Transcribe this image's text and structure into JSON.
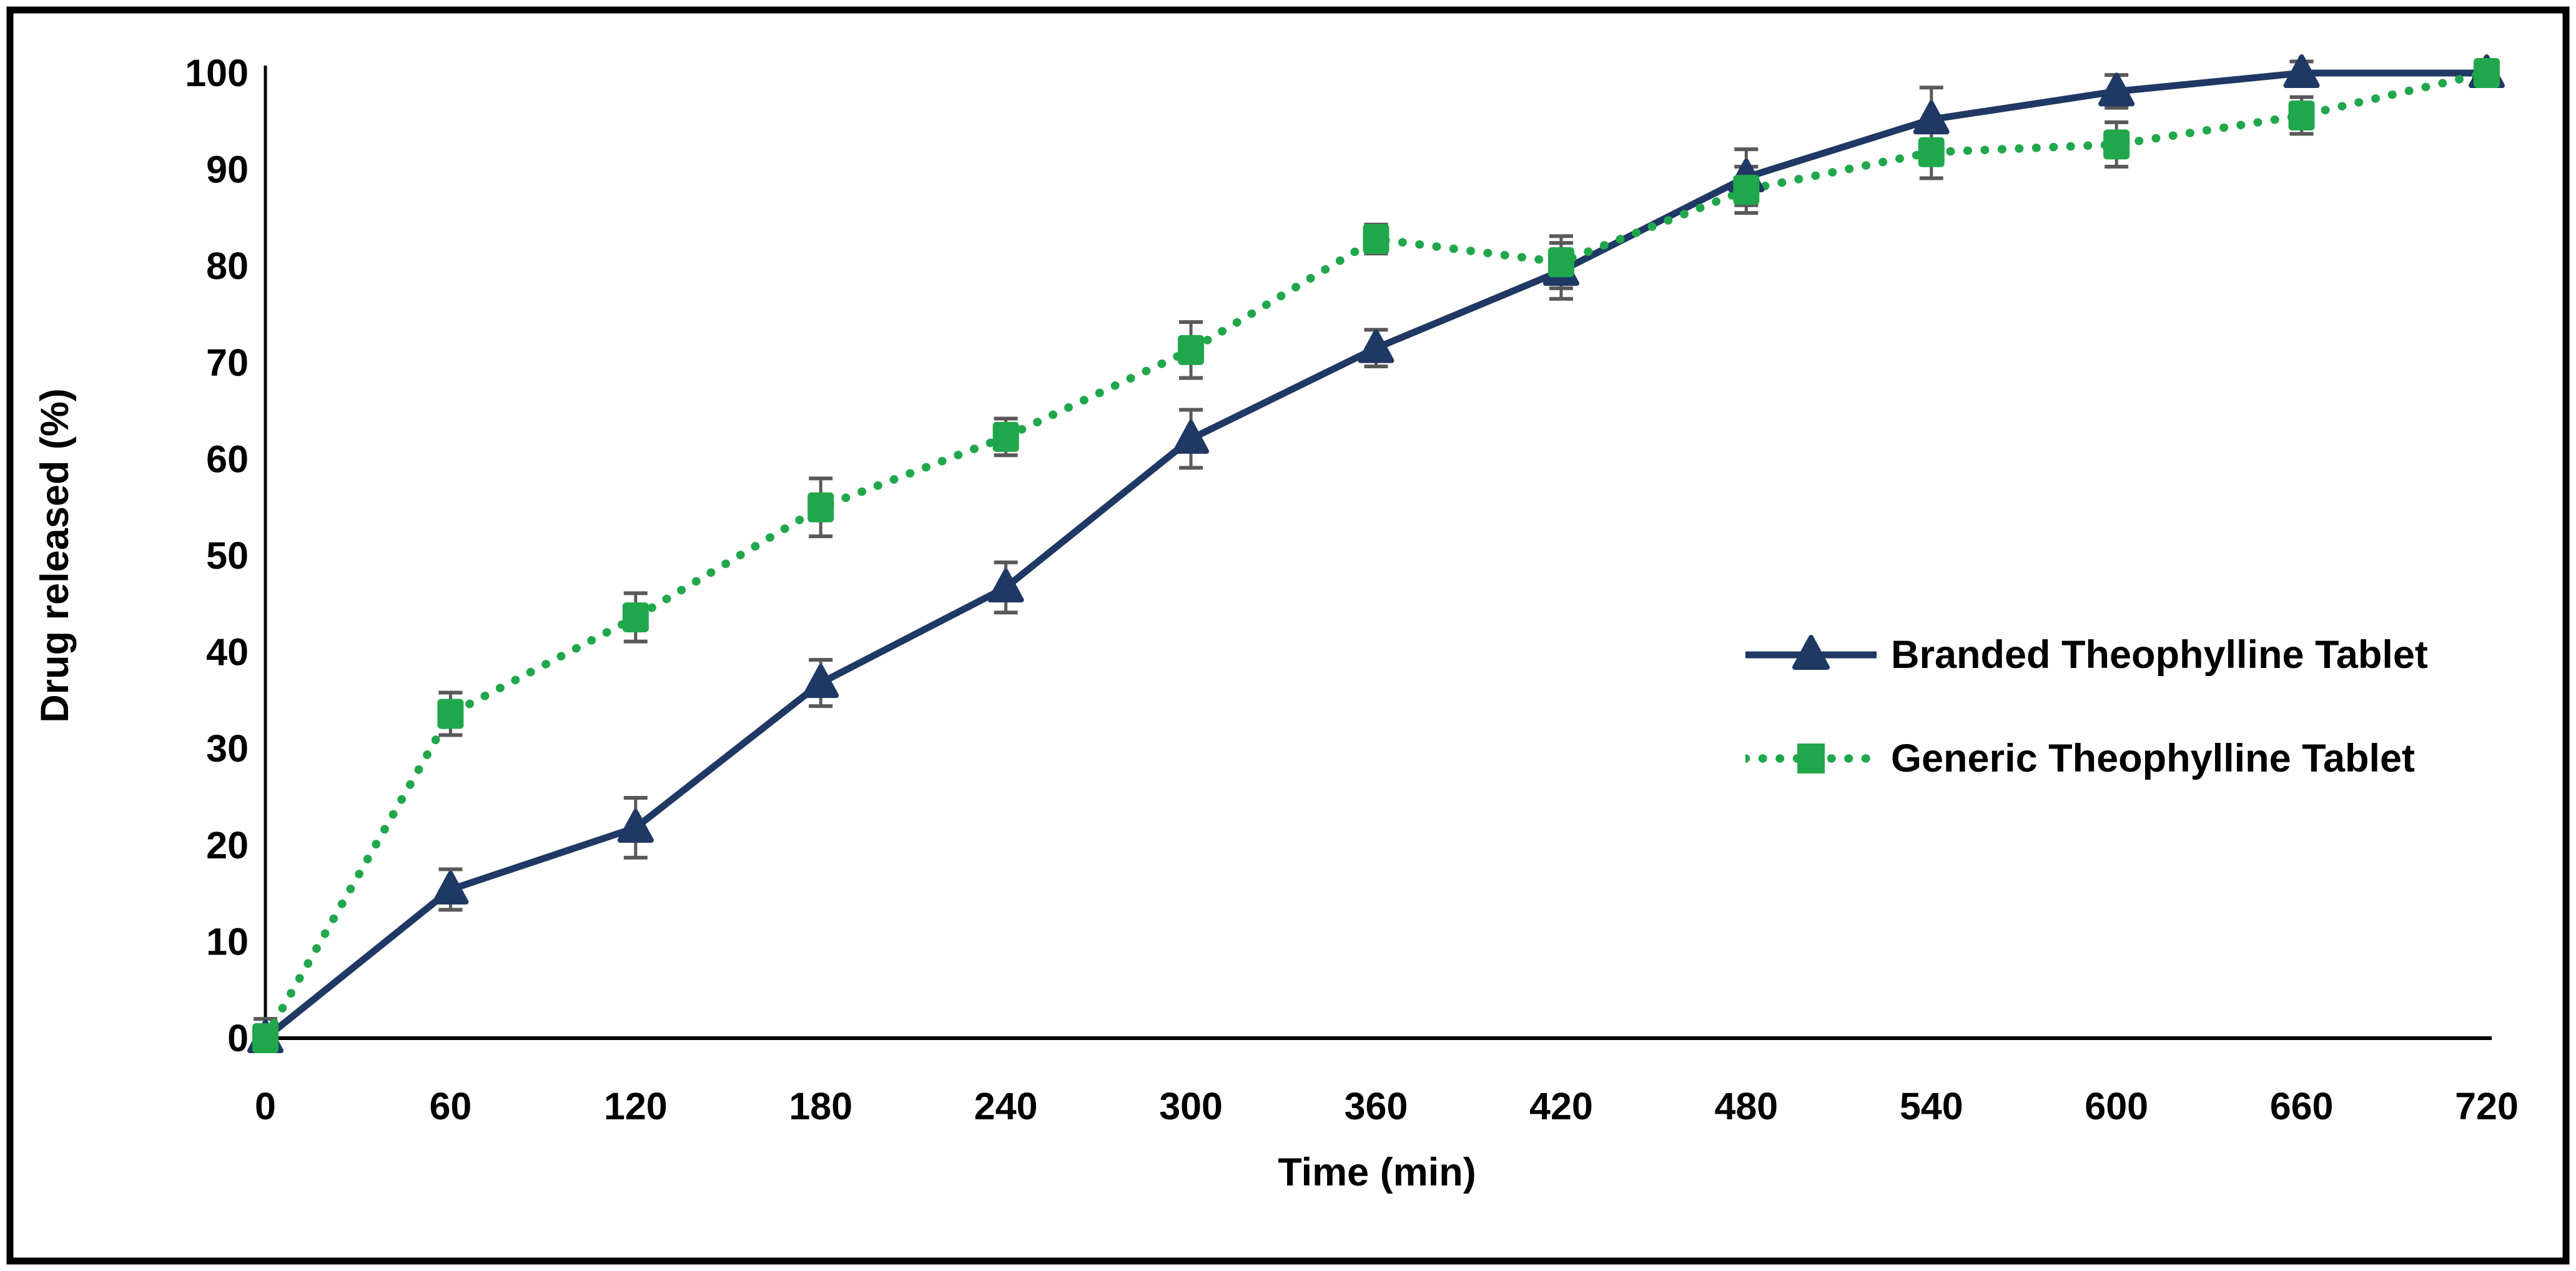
{
  "figure": {
    "background_color": "#ffffff",
    "border_color": "#000000",
    "plot_area_color": "#ffffff"
  },
  "chart_data": {
    "type": "line",
    "title": "",
    "xlabel": "Time (min)",
    "ylabel": "Drug released (%)",
    "x": [
      0,
      60,
      120,
      180,
      240,
      300,
      360,
      420,
      480,
      540,
      600,
      660,
      720
    ],
    "x_tick_labels": [
      "0",
      "60",
      "120",
      "180",
      "240",
      "300",
      "360",
      "420",
      "480",
      "540",
      "600",
      "660",
      "720"
    ],
    "y_ticks": [
      0,
      10,
      20,
      30,
      40,
      50,
      60,
      70,
      80,
      90,
      100
    ],
    "xlim": [
      0,
      720
    ],
    "ylim": [
      0,
      100
    ],
    "grid": false,
    "legend_position": "middle-right",
    "error_bar_color": "#595959",
    "axis_color": "#000000",
    "tick_font_color": "#000000",
    "series": [
      {
        "name": "Branded Theophylline Tablet",
        "color": "#1F3864",
        "line_style": "solid",
        "marker": "triangle",
        "values": [
          0,
          15.4,
          21.8,
          36.8,
          46.7,
          62.1,
          71.5,
          79.5,
          89.2,
          95.2,
          98.1,
          100,
          100
        ],
        "errors": [
          0.6,
          2.1,
          3.1,
          2.4,
          2.6,
          3.0,
          1.9,
          2.9,
          2.9,
          3.3,
          1.7,
          1.2,
          0
        ]
      },
      {
        "name": "Generic Theophylline Tablet",
        "color": "#21A74B",
        "line_style": "dotted",
        "marker": "square",
        "values": [
          0,
          33.6,
          43.6,
          55.0,
          62.3,
          71.3,
          82.8,
          80.4,
          87.9,
          91.8,
          92.6,
          95.6,
          100
        ],
        "errors": [
          2.0,
          2.2,
          2.5,
          3.0,
          1.9,
          2.9,
          1.5,
          2.7,
          2.4,
          2.7,
          2.3,
          1.9,
          0
        ]
      }
    ]
  }
}
